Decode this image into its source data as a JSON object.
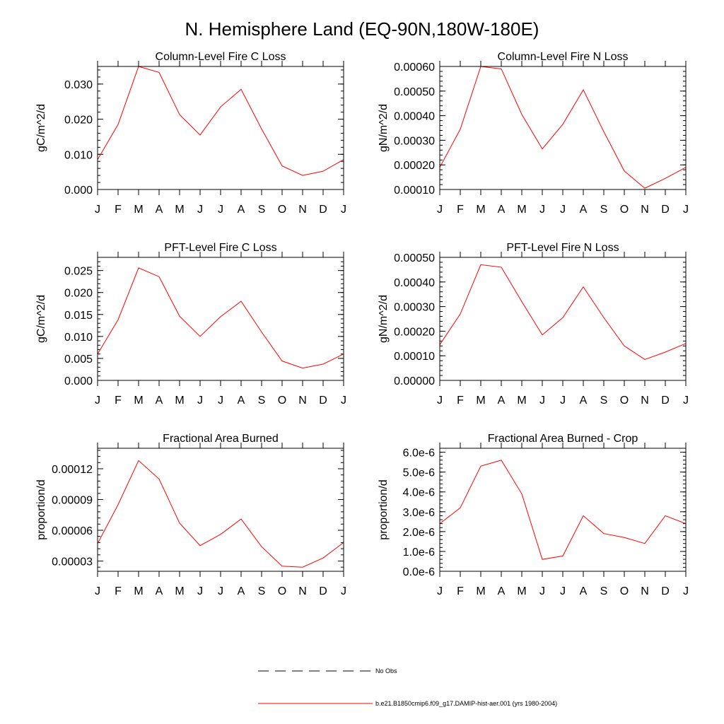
{
  "title": "N. Hemisphere Land (EQ-90N,180W-180E)",
  "months": [
    "J",
    "F",
    "M",
    "A",
    "M",
    "J",
    "J",
    "A",
    "S",
    "O",
    "N",
    "D",
    "J"
  ],
  "series_color": "#ff0000",
  "legend": [
    {
      "label": "No Obs",
      "style": "dashed",
      "color": "#000000"
    },
    {
      "label": "b.e21.B1850cmip6.f09_g17.DAMIP-hist-aer.001 (yrs 1980-2004)",
      "style": "solid",
      "color": "#ff0000"
    }
  ],
  "chart_data": [
    {
      "type": "line",
      "title": "Column-Level Fire C Loss",
      "ylabel": "gC/m^2/d",
      "ylim": [
        0.0,
        0.035
      ],
      "yticks": [
        0.0,
        0.01,
        0.02,
        0.03
      ],
      "ytick_labels": [
        "0.000",
        "0.010",
        "0.020",
        "0.030"
      ],
      "minor_step": 0.002,
      "series": [
        {
          "values": [
            0.0085,
            0.0185,
            0.035,
            0.0333,
            0.0213,
            0.0155,
            0.0235,
            0.0285,
            0.0172,
            0.0067,
            0.004,
            0.0052,
            0.0085
          ]
        }
      ]
    },
    {
      "type": "line",
      "title": "Column-Level Fire N Loss",
      "ylabel": "gN/m^2/d",
      "ylim": [
        0.0001,
        0.0006
      ],
      "yticks": [
        0.0001,
        0.0002,
        0.0003,
        0.0004,
        0.0005,
        0.0006
      ],
      "ytick_labels": [
        "0.00010",
        "0.00020",
        "0.00030",
        "0.00040",
        "0.00050",
        "0.00060"
      ],
      "minor_step": 2e-05,
      "series": [
        {
          "values": [
            0.00019,
            0.000345,
            0.0006,
            0.00059,
            0.000405,
            0.000265,
            0.000365,
            0.000505,
            0.000335,
            0.000175,
            0.000105,
            0.000145,
            0.00019
          ]
        }
      ]
    },
    {
      "type": "line",
      "title": "PFT-Level Fire C Loss",
      "ylabel": "gC/m^2/d",
      "ylim": [
        0.0,
        0.028
      ],
      "yticks": [
        0.0,
        0.005,
        0.01,
        0.015,
        0.02,
        0.025
      ],
      "ytick_labels": [
        "0.000",
        "0.005",
        "0.010",
        "0.015",
        "0.020",
        "0.025"
      ],
      "minor_step": 0.001,
      "series": [
        {
          "values": [
            0.006,
            0.0138,
            0.0256,
            0.0236,
            0.0146,
            0.01,
            0.0145,
            0.018,
            0.011,
            0.0044,
            0.0028,
            0.0037,
            0.006
          ]
        }
      ]
    },
    {
      "type": "line",
      "title": "PFT-Level Fire N Loss",
      "ylabel": "gN/m^2/d",
      "ylim": [
        0.0,
        0.0005
      ],
      "yticks": [
        0.0,
        0.0001,
        0.0002,
        0.0003,
        0.0004,
        0.0005
      ],
      "ytick_labels": [
        "0.00000",
        "0.00010",
        "0.00020",
        "0.00030",
        "0.00040",
        "0.00050"
      ],
      "minor_step": 2e-05,
      "series": [
        {
          "values": [
            0.000145,
            0.00027,
            0.00047,
            0.00046,
            0.00032,
            0.000185,
            0.000255,
            0.00038,
            0.000255,
            0.00014,
            8.5e-05,
            0.000115,
            0.00015
          ]
        }
      ]
    },
    {
      "type": "line",
      "title": "Fractional Area Burned",
      "ylabel": "proportion/d",
      "ylim": [
        2e-05,
        0.00014
      ],
      "yticks": [
        3e-05,
        6e-05,
        9e-05,
        0.00012
      ],
      "ytick_labels": [
        "0.00003",
        "0.00006",
        "0.00009",
        "0.00012"
      ],
      "minor_step": 6e-06,
      "series": [
        {
          "values": [
            4.7e-05,
            8.5e-05,
            0.000128,
            0.00011,
            6.7e-05,
            4.5e-05,
            5.6e-05,
            7.1e-05,
            4.4e-05,
            2.5e-05,
            2.4e-05,
            3.3e-05,
            4.8e-05
          ]
        }
      ]
    },
    {
      "type": "line",
      "title": "Fractional Area Burned - Crop",
      "ylabel": "proportion/d",
      "ylim": [
        0.0,
        6.2e-06
      ],
      "yticks": [
        0.0,
        1e-06,
        2e-06,
        3e-06,
        4e-06,
        5e-06,
        6e-06
      ],
      "ytick_labels": [
        "0.0e-6",
        "1.0e-6",
        "2.0e-6",
        "3.0e-6",
        "4.0e-6",
        "5.0e-6",
        "6.0e-6"
      ],
      "minor_step": 2e-07,
      "series": [
        {
          "values": [
            2.4e-06,
            3.2e-06,
            5.3e-06,
            5.6e-06,
            3.9e-06,
            6e-07,
            7.7e-07,
            2.8e-06,
            1.9e-06,
            1.7e-06,
            1.4e-06,
            2.8e-06,
            2.4e-06
          ]
        }
      ]
    }
  ]
}
